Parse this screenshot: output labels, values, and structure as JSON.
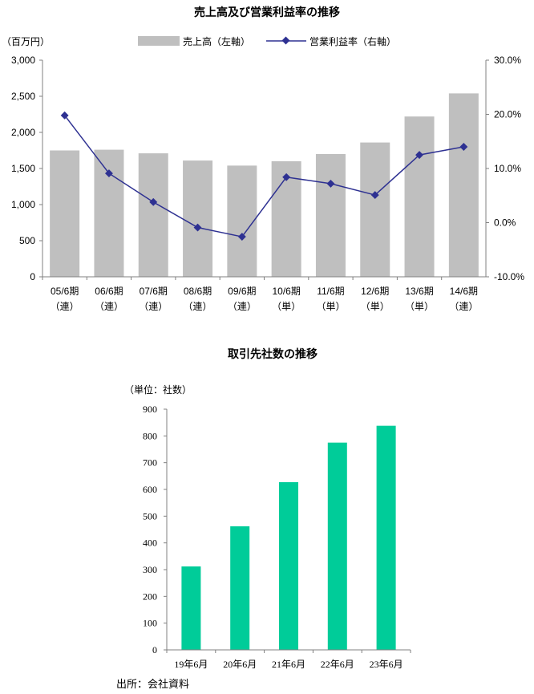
{
  "chart_data": [
    {
      "type": "bar+line",
      "title": "売上高及び営業利益率の推移",
      "unit_label": "（百万円）",
      "categories": [
        [
          "05/6期",
          "（連）"
        ],
        [
          "06/6期",
          "（連）"
        ],
        [
          "07/6期",
          "（連）"
        ],
        [
          "08/6期",
          "（連）"
        ],
        [
          "09/6期",
          "（連）"
        ],
        [
          "10/6期",
          "（単）"
        ],
        [
          "11/6期",
          "（単）"
        ],
        [
          "12/6期",
          "（単）"
        ],
        [
          "13/6期",
          "（単）"
        ],
        [
          "14/6期",
          "（連）"
        ]
      ],
      "series": [
        {
          "name": "売上高（左軸）",
          "kind": "bar",
          "axis": "left",
          "color": "#bfbfbf",
          "values": [
            1750,
            1760,
            1710,
            1610,
            1540,
            1600,
            1700,
            1860,
            2220,
            2540
          ]
        },
        {
          "name": "営業利益率（右軸）",
          "kind": "line",
          "axis": "right",
          "color": "#2e3192",
          "values": [
            19.8,
            9.1,
            3.8,
            -0.9,
            -2.6,
            8.4,
            7.2,
            5.1,
            12.5,
            14.0
          ]
        }
      ],
      "ylim_left": [
        0,
        3000
      ],
      "yticks_left": [
        "0",
        "500",
        "1,000",
        "1,500",
        "2,000",
        "2,500",
        "3,000"
      ],
      "ylim_right": [
        -10,
        30
      ],
      "yticks_right": [
        "-10.0%",
        "0.0%",
        "10.0%",
        "20.0%",
        "30.0%"
      ],
      "legend": "top-center",
      "grid": false
    },
    {
      "type": "bar",
      "title": "取引先社数の推移",
      "unit_label": "（単位：社数）",
      "categories": [
        "19年6月",
        "20年6月",
        "21年6月",
        "22年6月",
        "23年6月"
      ],
      "values": [
        312,
        462,
        627,
        775,
        838
      ],
      "color": "#00cc99",
      "ylim": [
        0,
        900
      ],
      "yticks": [
        "0",
        "100",
        "200",
        "300",
        "400",
        "500",
        "600",
        "700",
        "800",
        "900"
      ],
      "grid": false
    }
  ],
  "source": "出所：会社資料"
}
